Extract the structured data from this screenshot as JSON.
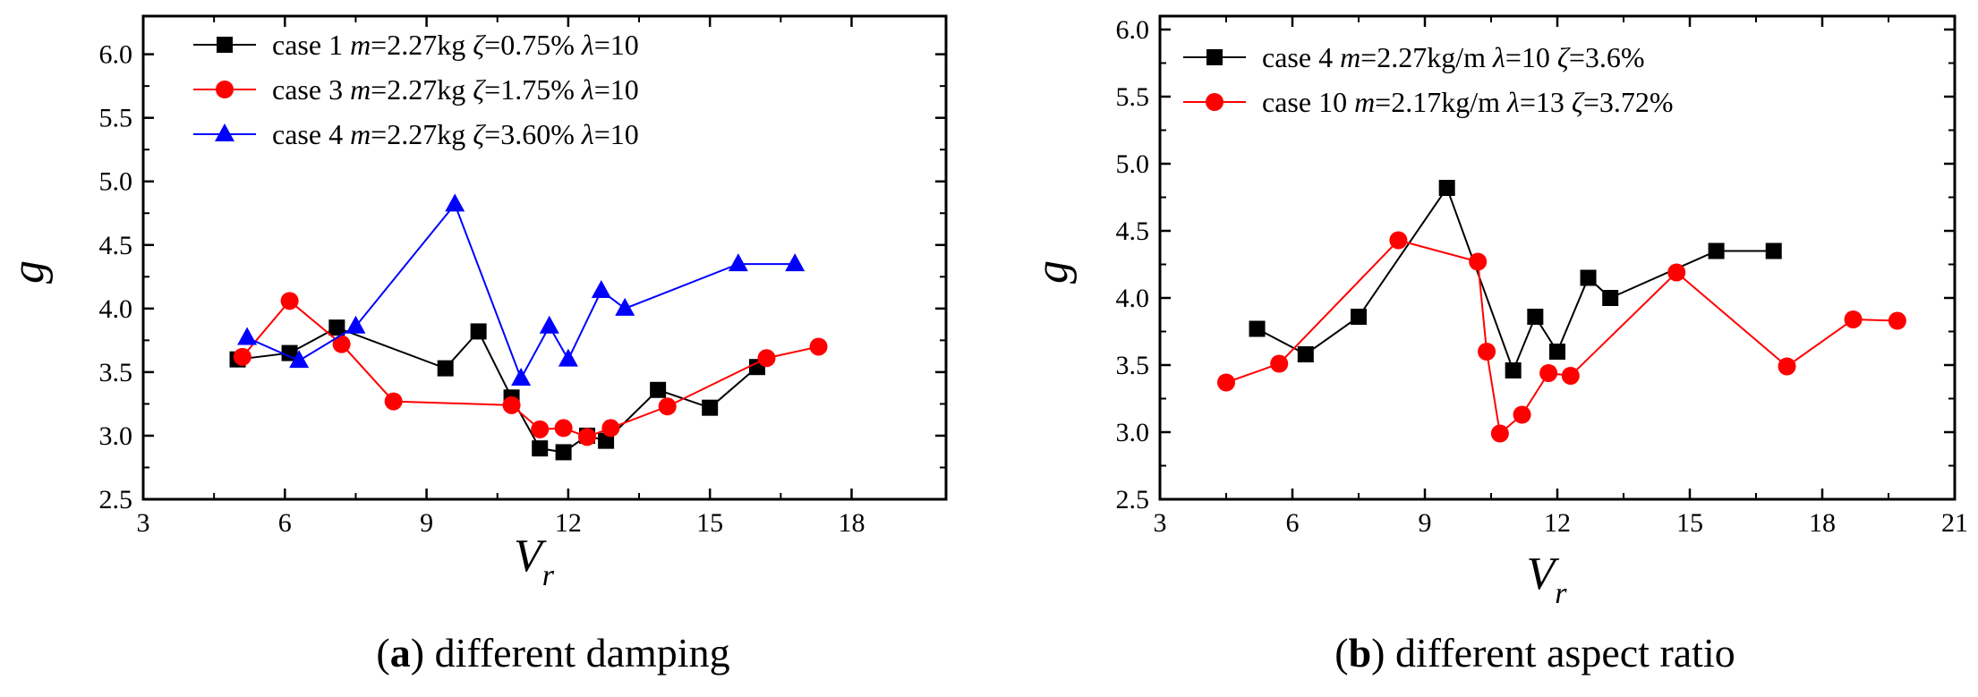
{
  "chart_data": [
    {
      "type": "line",
      "caption_letter": "a",
      "caption_text": ") different damping",
      "caption_open": "(",
      "xlabel_main": "V",
      "xlabel_sub": "r",
      "ylabel": "g",
      "xlim": [
        3,
        20
      ],
      "ylim": [
        2.5,
        6.3
      ],
      "xticks": [
        3,
        6,
        9,
        12,
        15,
        18
      ],
      "yticks": [
        2.5,
        3.0,
        3.5,
        4.0,
        4.5,
        5.0,
        5.5,
        6.0
      ],
      "ytick_labels": [
        "2.5",
        "3.0",
        "3.5",
        "4.0",
        "4.5",
        "5.0",
        "5.5",
        "6.0"
      ],
      "series": [
        {
          "name": "case 1",
          "legend": {
            "case": "case 1",
            "m": "m",
            "mval": "=2.27kg",
            "zeta": "ζ",
            "zval": "=0.75%",
            "lam": "λ",
            "lval": "=10"
          },
          "color": "#000000",
          "marker": "square",
          "x": [
            5.0,
            6.1,
            7.1,
            9.4,
            10.1,
            10.8,
            11.4,
            11.9,
            12.4,
            12.8,
            13.9,
            15.0,
            16.0
          ],
          "y": [
            3.6,
            3.65,
            3.85,
            3.53,
            3.82,
            3.3,
            2.9,
            2.87,
            3.0,
            2.96,
            3.36,
            3.22,
            3.54
          ]
        },
        {
          "name": "case 3",
          "legend": {
            "case": "case 3",
            "m": "m",
            "mval": "=2.27kg",
            "zeta": "ζ",
            "zval": "=1.75%",
            "lam": "λ",
            "lval": "=10"
          },
          "color": "#ff0000",
          "marker": "circle",
          "x": [
            5.1,
            6.1,
            7.2,
            8.3,
            10.8,
            11.4,
            11.9,
            12.4,
            12.9,
            14.1,
            16.2,
            17.3
          ],
          "y": [
            3.62,
            4.06,
            3.72,
            3.27,
            3.24,
            3.05,
            3.06,
            2.99,
            3.06,
            3.23,
            3.61,
            3.7
          ]
        },
        {
          "name": "case 4",
          "legend": {
            "case": "case 4",
            "m": "m",
            "mval": "=2.27kg",
            "zeta": "ζ",
            "zval": "=3.60%",
            "lam": "λ",
            "lval": "=10"
          },
          "color": "#0000ff",
          "marker": "triangle",
          "x": [
            5.2,
            6.3,
            7.5,
            9.6,
            11.0,
            11.6,
            12.0,
            12.7,
            13.2,
            15.6,
            16.8
          ],
          "y": [
            3.77,
            3.59,
            3.86,
            4.82,
            3.45,
            3.86,
            3.6,
            4.14,
            4.0,
            4.35,
            4.35
          ]
        }
      ]
    },
    {
      "type": "line",
      "caption_letter": "b",
      "caption_text": ") different aspect ratio",
      "caption_open": "(",
      "xlabel_main": "V",
      "xlabel_sub": "r",
      "ylabel": "g",
      "xlim": [
        3,
        21
      ],
      "ylim": [
        2.5,
        6.1
      ],
      "xticks": [
        3,
        6,
        9,
        12,
        15,
        18,
        21
      ],
      "yticks": [
        2.5,
        3.0,
        3.5,
        4.0,
        4.5,
        5.0,
        5.5,
        6.0
      ],
      "ytick_labels": [
        "2.5",
        "3.0",
        "3.5",
        "4.0",
        "4.5",
        "5.0",
        "5.5",
        "6.0"
      ],
      "series": [
        {
          "name": "case 4",
          "legend": {
            "case": "case 4",
            "m": "m",
            "mval": "=2.27kg/m",
            "zeta": "ζ",
            "zval": "=3.6%",
            "lam": "λ",
            "lval": "=10",
            "order": "lambda-first"
          },
          "color": "#000000",
          "marker": "square",
          "x": [
            5.2,
            6.3,
            7.5,
            9.5,
            11.0,
            11.5,
            12.0,
            12.7,
            13.2,
            15.6,
            16.9
          ],
          "y": [
            3.77,
            3.58,
            3.86,
            4.82,
            3.46,
            3.86,
            3.6,
            4.15,
            4.0,
            4.35,
            4.35
          ]
        },
        {
          "name": "case 10",
          "legend": {
            "case": "case 10",
            "m": "m",
            "mval": "=2.17kg/m",
            "zeta": "ζ",
            "zval": "=3.72%",
            "lam": "λ",
            "lval": "=13",
            "order": "lambda-first"
          },
          "color": "#ff0000",
          "marker": "circle",
          "x": [
            4.5,
            5.7,
            8.4,
            10.2,
            10.4,
            10.7,
            11.2,
            11.8,
            12.3,
            14.7,
            17.2,
            18.7,
            19.7
          ],
          "y": [
            3.37,
            3.51,
            4.43,
            4.27,
            3.6,
            2.99,
            3.13,
            3.44,
            3.42,
            4.19,
            3.49,
            3.84,
            3.83
          ]
        }
      ]
    }
  ]
}
